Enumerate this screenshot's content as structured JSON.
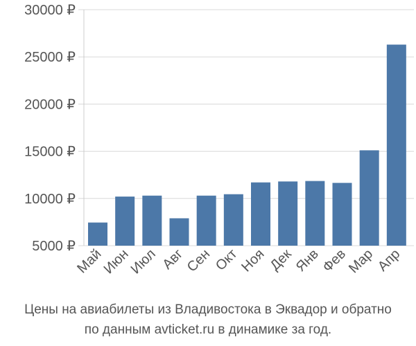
{
  "chart_data": {
    "type": "bar",
    "categories": [
      "Май",
      "Июн",
      "Июл",
      "Авг",
      "Сен",
      "Окт",
      "Ноя",
      "Дек",
      "Янв",
      "Фев",
      "Мар",
      "Апр"
    ],
    "values": [
      7450,
      10200,
      10300,
      7900,
      10300,
      10450,
      11700,
      11800,
      11850,
      11650,
      15100,
      26300
    ],
    "yticks": [
      5000,
      10000,
      15000,
      20000,
      25000,
      30000
    ],
    "ytick_labels": [
      "5000 ₽",
      "10000 ₽",
      "15000 ₽",
      "20000 ₽",
      "25000 ₽",
      "30000 ₽"
    ],
    "ylim": [
      4000,
      30000
    ],
    "bar_color": "#4c78a8",
    "grid_color": "#d8d8d8",
    "title": "",
    "xlabel": "",
    "ylabel": ""
  },
  "caption": {
    "line1": "Цены на авиабилеты из Владивостока в Эквадор и обратно",
    "line2": "по данным avticket.ru в динамике за год."
  }
}
